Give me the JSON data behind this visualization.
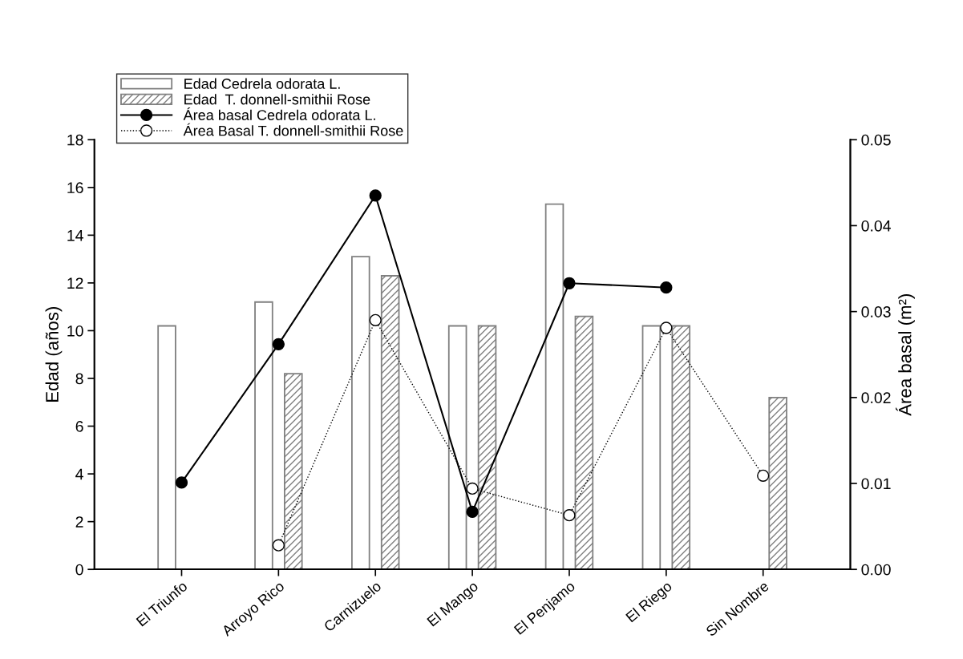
{
  "chart_data": {
    "type": "bar",
    "categories": [
      "El Triunfo",
      "Arroyo Rico",
      "Carnizuelo",
      "El Mango",
      "El Penjamo",
      "El Riego",
      "Sin Nombre"
    ],
    "series": [
      {
        "name": "Edad Cedrela odorata L.",
        "color": "#ffffff",
        "values": [
          10.2,
          11.2,
          13.1,
          10.2,
          15.3,
          10.2,
          null
        ]
      },
      {
        "name": "Edad  T. donnell-smithii Rose",
        "color": "#808080",
        "values": [
          null,
          8.2,
          12.3,
          10.2,
          10.6,
          10.2,
          7.2
        ]
      },
      {
        "name": "Área basal Cedrela odorata L.",
        "type": "line",
        "axis": "y2",
        "color": "#000000",
        "marker": "circle",
        "line_style": "solid",
        "values": [
          0.0101,
          0.0262,
          0.0435,
          0.0067,
          0.0333,
          0.0328,
          null
        ]
      },
      {
        "name": "Área Basal T. donnell-smithii Rose",
        "type": "line",
        "axis": "y2",
        "color": "#000000",
        "marker": "circle",
        "line_style": "dotted",
        "values": [
          null,
          0.0028,
          0.029,
          0.0094,
          0.0063,
          0.0281,
          0.0109
        ]
      }
    ],
    "ylabel": "Edad (años)",
    "y2label": "Área basal (m²)",
    "ylim": [
      0,
      18
    ],
    "yticks": [
      0,
      2,
      4,
      6,
      8,
      10,
      12,
      14,
      16,
      18
    ],
    "y2lim": [
      0,
      0.05
    ],
    "y2ticks": [
      {
        "value": 0,
        "label": "0.00"
      },
      0.01,
      0.02,
      0.03,
      0.04,
      0.05
    ],
    "grid": false,
    "legend": "top left"
  }
}
